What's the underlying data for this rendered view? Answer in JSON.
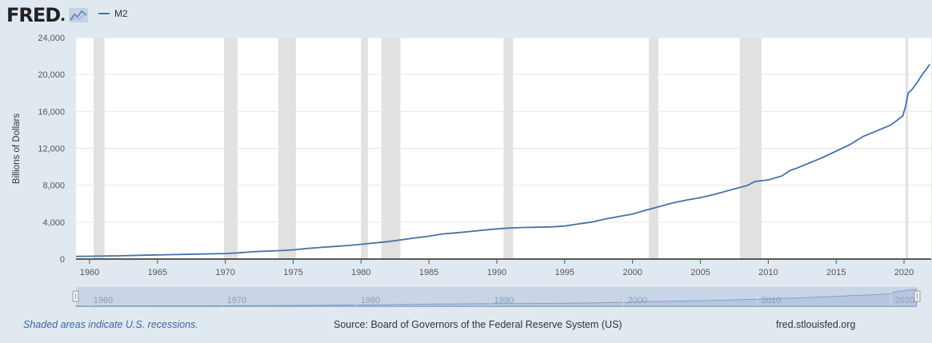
{
  "header": {
    "logo_text": "FRED",
    "logo_dot": "."
  },
  "colors": {
    "series": "#4572a7",
    "recession": "#e1e1e1",
    "background": "#e1e9f0",
    "navigator_fill": "#b9c8e2"
  },
  "chart_data": {
    "type": "line",
    "ylabel": "Billions of Dollars",
    "xlim": [
      1959,
      2022
    ],
    "ylim": [
      0,
      24000
    ],
    "y_ticks": [
      0,
      4000,
      8000,
      12000,
      16000,
      20000,
      24000
    ],
    "y_tick_labels": [
      "0",
      "4,000",
      "8,000",
      "12,000",
      "16,000",
      "20,000",
      "24,000"
    ],
    "x_ticks": [
      1960,
      1965,
      1970,
      1975,
      1980,
      1985,
      1990,
      1995,
      2000,
      2005,
      2010,
      2015,
      2020
    ],
    "x_tick_labels": [
      "1960",
      "1965",
      "1970",
      "1975",
      "1980",
      "1985",
      "1990",
      "1995",
      "2000",
      "2005",
      "2010",
      "2015",
      "2020"
    ],
    "navigator_tick_labels": [
      "1960",
      "1970",
      "1980",
      "1990",
      "2000",
      "2010",
      "2020"
    ],
    "grid": true,
    "recessions": [
      [
        1960.3,
        1961.1
      ],
      [
        1969.9,
        1970.9
      ],
      [
        1973.9,
        1975.2
      ],
      [
        1980.0,
        1980.5
      ],
      [
        1981.5,
        1982.9
      ],
      [
        1990.5,
        1991.2
      ],
      [
        2001.2,
        2001.9
      ],
      [
        2007.9,
        2009.5
      ],
      [
        2020.1,
        2020.3
      ]
    ],
    "series": [
      {
        "name": "M2",
        "x": [
          1959.0,
          1960.0,
          1962.0,
          1964.0,
          1966.0,
          1968.0,
          1970.0,
          1971.0,
          1972.0,
          1973.0,
          1974.0,
          1975.0,
          1976.0,
          1977.0,
          1978.0,
          1979.0,
          1980.0,
          1981.0,
          1982.0,
          1983.0,
          1984.0,
          1985.0,
          1986.0,
          1987.0,
          1988.0,
          1989.0,
          1990.0,
          1991.0,
          1992.0,
          1993.0,
          1994.0,
          1995.0,
          1996.0,
          1997.0,
          1998.0,
          1999.0,
          2000.0,
          2001.0,
          2002.0,
          2003.0,
          2004.0,
          2005.0,
          2006.0,
          2007.0,
          2008.0,
          2008.5,
          2009.0,
          2010.0,
          2011.0,
          2011.6,
          2012.0,
          2013.0,
          2014.0,
          2015.0,
          2016.0,
          2017.0,
          2018.0,
          2019.0,
          2019.9,
          2020.1,
          2020.3,
          2020.6,
          2021.0,
          2021.3,
          2021.6,
          2021.9
        ],
        "y": [
          290,
          305,
          350,
          420,
          480,
          540,
          600,
          680,
          790,
          860,
          910,
          1000,
          1140,
          1260,
          1360,
          1460,
          1590,
          1750,
          1890,
          2090,
          2300,
          2480,
          2720,
          2840,
          2980,
          3140,
          3270,
          3370,
          3420,
          3450,
          3480,
          3580,
          3800,
          4010,
          4340,
          4620,
          4880,
          5300,
          5700,
          6100,
          6400,
          6650,
          7000,
          7400,
          7800,
          8000,
          8400,
          8580,
          9000,
          9600,
          9800,
          10400,
          11000,
          11700,
          12400,
          13300,
          13900,
          14500,
          15500,
          16500,
          18000,
          18400,
          19200,
          19900,
          20500,
          21100
        ]
      }
    ]
  },
  "footer": {
    "recession_note": "Shaded areas indicate U.S. recessions.",
    "source": "Source: Board of Governors of the Federal Reserve System (US)",
    "site": "fred.stlouisfed.org"
  }
}
